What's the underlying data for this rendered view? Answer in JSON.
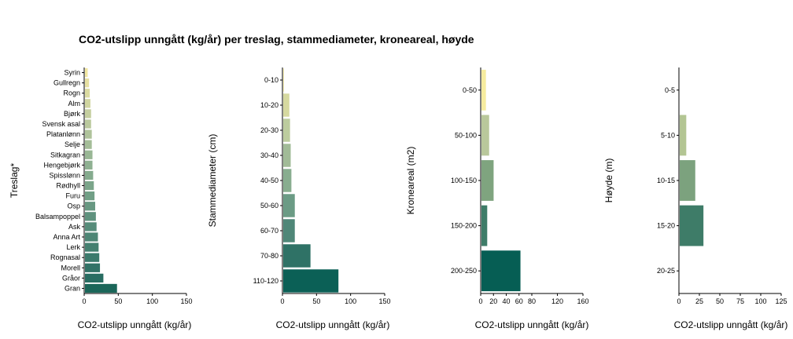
{
  "title": "CO2-utslipp unngått (kg/år) per treslag, stammediameter, kroneareal, høyde",
  "chart_data": [
    {
      "type": "bar",
      "orientation": "horizontal",
      "ylabel": "Treslag*",
      "xlabel": "CO2-utslipp unngått (kg/år)",
      "xlim": [
        0,
        150
      ],
      "xticks": [
        0,
        50,
        100,
        150
      ],
      "categories": [
        "Syrin",
        "Gullregn",
        "Rogn",
        "Alm",
        "Bjørk",
        "Svensk asal",
        "Platanlønn",
        "Selje",
        "Sitkagran",
        "Hengebjørk",
        "Spisslønn",
        "Rødhyll",
        "Furu",
        "Osp",
        "Balsampoppel",
        "Ask",
        "Anna Art",
        "Lerk",
        "Rognasal",
        "Morell",
        "Gråor",
        "Gran"
      ],
      "values": [
        4,
        6,
        7,
        8,
        9,
        9,
        10,
        10,
        11,
        11,
        12,
        13,
        14,
        15,
        16,
        17,
        19,
        20,
        21,
        22,
        27,
        47
      ],
      "colors": [
        "#f2e7a0",
        "#e6e0a1",
        "#dbdba1",
        "#d0d5a0",
        "#c5cf9f",
        "#bac99d",
        "#afc39b",
        "#a4bd98",
        "#99b795",
        "#8fb192",
        "#85ab8e",
        "#7ba58a",
        "#719f86",
        "#689882",
        "#5f927e",
        "#568c7a",
        "#4d8675",
        "#448070",
        "#3b7a6c",
        "#327367",
        "#286d62",
        "#1b6659"
      ]
    },
    {
      "type": "bar",
      "orientation": "horizontal",
      "ylabel": "Stammediameter (cm)",
      "xlabel": "CO2-utslipp unngått (kg/år)",
      "xlim": [
        0,
        150
      ],
      "xticks": [
        0,
        50,
        100,
        150
      ],
      "categories": [
        "0-10",
        "10-20",
        "20-30",
        "30-40",
        "40-50",
        "50-60",
        "60-70",
        "70-80",
        "110-120"
      ],
      "values": [
        1,
        9,
        10,
        11,
        12,
        17,
        17,
        40,
        81
      ],
      "colors": [
        "#f5eba3",
        "#d6d9a0",
        "#bccc9e",
        "#a1bb97",
        "#88ad8f",
        "#6b9b85",
        "#4f8778",
        "#2f7266",
        "#0b6056"
      ]
    },
    {
      "type": "bar",
      "orientation": "horizontal",
      "ylabel": "Kroneareal (m2)",
      "xlabel": "CO2-utslipp unngått (kg/år)",
      "xlim": [
        0,
        160
      ],
      "xticks": [
        0,
        20,
        40,
        60,
        80,
        120,
        160
      ],
      "xticklabels": [
        "0",
        "20",
        "40",
        "60",
        "80",
        "120",
        "160"
      ],
      "categories": [
        "0-50",
        "50-100",
        "100-150",
        "150-200",
        "200-250"
      ],
      "values": [
        7,
        12,
        19,
        9,
        61
      ],
      "colors": [
        "#f6ec9f",
        "#b9c89b",
        "#7fa47f",
        "#3e7c68",
        "#065e54"
      ]
    },
    {
      "type": "bar",
      "orientation": "horizontal",
      "ylabel": "Høyde (m)",
      "xlabel": "CO2-utslipp unngått (kg/år)",
      "xlim": [
        0,
        125
      ],
      "xticks": [
        0,
        25,
        50,
        75,
        100,
        125
      ],
      "categories": [
        "0-5",
        "5-10",
        "10-15",
        "15-20",
        "20-25"
      ],
      "values": [
        0,
        8,
        19,
        29,
        0
      ],
      "colors": [
        "#f2e8a0",
        "#b3c593",
        "#7ca27e",
        "#3e7c68",
        "#0b6056"
      ]
    }
  ]
}
